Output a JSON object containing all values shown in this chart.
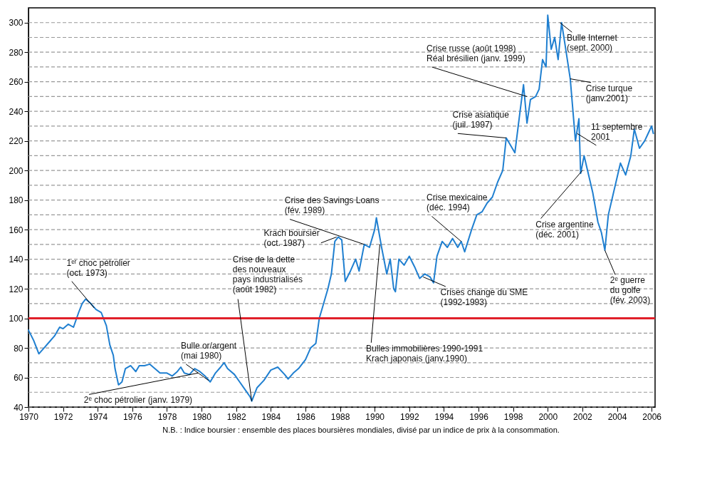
{
  "chart_data": {
    "type": "line",
    "x": [
      1970.0,
      1970.3,
      1970.6,
      1970.9,
      1971.2,
      1971.5,
      1971.8,
      1972.0,
      1972.3,
      1972.6,
      1972.9,
      1973.1,
      1973.3,
      1973.6,
      1973.9,
      1974.2,
      1974.5,
      1974.7,
      1974.9,
      1975.0,
      1975.2,
      1975.4,
      1975.6,
      1975.9,
      1976.2,
      1976.4,
      1976.7,
      1977.0,
      1977.3,
      1977.6,
      1978.0,
      1978.3,
      1978.6,
      1978.8,
      1979.0,
      1979.3,
      1979.6,
      1979.9,
      1980.2,
      1980.5,
      1980.8,
      1981.1,
      1981.3,
      1981.5,
      1981.9,
      1982.2,
      1982.5,
      1982.8,
      1982.9,
      1983.2,
      1983.6,
      1984.0,
      1984.4,
      1984.8,
      1985.0,
      1985.3,
      1985.6,
      1986.0,
      1986.3,
      1986.6,
      1986.8,
      1987.0,
      1987.3,
      1987.5,
      1987.7,
      1987.9,
      1988.1,
      1988.3,
      1988.6,
      1988.9,
      1989.1,
      1989.4,
      1989.7,
      1990.0,
      1990.1,
      1990.4,
      1990.7,
      1990.9,
      1991.1,
      1991.2,
      1991.4,
      1991.7,
      1992.0,
      1992.3,
      1992.6,
      1992.9,
      1993.2,
      1993.4,
      1993.6,
      1993.9,
      1994.2,
      1994.5,
      1994.8,
      1995.0,
      1995.2,
      1995.6,
      1995.9,
      1996.2,
      1996.5,
      1996.8,
      1997.1,
      1997.4,
      1997.6,
      1997.8,
      1998.1,
      1998.4,
      1998.6,
      1998.8,
      1999.0,
      1999.3,
      1999.5,
      1999.7,
      1999.9,
      2000.0,
      2000.2,
      2000.4,
      2000.6,
      2000.8,
      2001.0,
      2001.3,
      2001.6,
      2001.8,
      2001.9,
      2002.1,
      2002.3,
      2002.6,
      2002.9,
      2003.1,
      2003.3,
      2003.5,
      2003.8,
      2004.0,
      2004.2,
      2004.5,
      2004.8,
      2005.0,
      2005.3,
      2005.6,
      2005.8,
      2006.0,
      2006.1
    ],
    "series": [
      {
        "color": "#1f7fd0",
        "values": [
          92,
          85,
          76,
          80,
          84,
          88,
          94,
          93,
          96,
          94,
          104,
          110,
          113,
          110,
          106,
          104,
          95,
          82,
          75,
          66,
          55,
          57,
          66,
          68,
          64,
          68,
          68,
          69,
          66,
          63,
          63,
          61,
          64,
          67,
          63,
          62,
          66,
          64,
          61,
          57,
          63,
          67,
          70,
          66,
          62,
          57,
          52,
          47,
          44,
          53,
          58,
          65,
          67,
          62,
          59,
          63,
          66,
          72,
          80,
          83,
          100,
          108,
          120,
          130,
          152,
          155,
          153,
          125,
          132,
          140,
          132,
          150,
          148,
          160,
          168,
          148,
          130,
          140,
          120,
          118,
          140,
          136,
          142,
          135,
          127,
          130,
          128,
          124,
          142,
          152,
          148,
          154,
          148,
          152,
          145,
          160,
          170,
          172,
          178,
          182,
          192,
          200,
          222,
          218,
          212,
          240,
          258,
          232,
          248,
          250,
          255,
          275,
          270,
          305,
          282,
          290,
          275,
          300,
          285,
          262,
          220,
          235,
          198,
          210,
          200,
          185,
          165,
          158,
          146,
          170,
          185,
          195,
          205,
          197,
          210,
          228,
          215,
          220,
          225,
          230,
          225
        ]
      }
    ],
    "xlim": [
      1970,
      2006.2
    ],
    "xticks": [
      1970,
      1972,
      1974,
      1976,
      1978,
      1980,
      1982,
      1984,
      1986,
      1988,
      1990,
      1992,
      1994,
      1996,
      1998,
      2000,
      2002,
      2004,
      2006
    ],
    "ylim": [
      40,
      310
    ],
    "yticks": [
      40,
      {
        "value": 50,
        "label": null
      },
      60,
      {
        "value": 70,
        "label": null
      },
      80,
      {
        "value": 90,
        "label": null
      },
      100,
      {
        "value": 110,
        "label": null
      },
      120,
      {
        "value": 130,
        "label": null
      },
      140,
      {
        "value": 150,
        "label": null
      },
      160,
      {
        "value": 170,
        "label": null
      },
      180,
      {
        "value": 190,
        "label": null
      },
      200,
      {
        "value": 210,
        "label": null
      },
      220,
      {
        "value": 230,
        "label": null
      },
      240,
      {
        "value": 250,
        "label": null
      },
      260,
      {
        "value": 270,
        "label": null
      },
      280,
      {
        "value": 290,
        "label": null
      },
      300
    ],
    "grid": "y",
    "line_style": "solid",
    "ref_lines": [
      {
        "axis": "y",
        "value": 100,
        "color": "#e0202a"
      }
    ],
    "annotations": [
      {
        "text": "1ᵉʳ choc pétrolier\n(oct. 1973)",
        "x": 1973.8,
        "y": 107
      },
      {
        "text": "2ᵉ choc pétrolier (janv. 1979)",
        "x": 1979.8,
        "y": 63
      },
      {
        "text": "Bulle or/argent\n(mai 1980)",
        "x": 1980.4,
        "y": 58
      },
      {
        "text": "Crise de la dette\ndes nouveaux\npays industrialisés\n(août 1982)",
        "x": 1982.9,
        "y": 44
      },
      {
        "text": "Krach boursier\n(oct. 1987)",
        "x": 1987.8,
        "y": 155
      },
      {
        "text": "Crise des Savings Loans\n(fév. 1989)",
        "x": 1989.4,
        "y": 150
      },
      {
        "text": "Bulles immobilières 1990-1991\nKrach japonais (janv.1990)",
        "x": 1990.3,
        "y": 150
      },
      {
        "text": "Crises change du SME\n(1992-1993)",
        "x": 1992.8,
        "y": 128
      },
      {
        "text": "Crise mexicaine\n(déc. 1994)",
        "x": 1995.0,
        "y": 152
      },
      {
        "text": "Crise asiatique\n(juil. 1997)",
        "x": 1997.6,
        "y": 222
      },
      {
        "text": "Crise russe (août 1998)\nRéal brésilien (janv. 1999)",
        "x": 1998.8,
        "y": 250
      },
      {
        "text": "Bulle Internet\n(sept. 2000)",
        "x": 2000.7,
        "y": 300
      },
      {
        "text": "Crise turque\n(janv.2001)",
        "x": 2001.3,
        "y": 262
      },
      {
        "text": "11 septembre\n2001",
        "x": 2001.7,
        "y": 225
      },
      {
        "text": "Crise argentine\n(déc. 2001)",
        "x": 2002.0,
        "y": 200
      },
      {
        "text": "2ᵉ guerre\ndu golfe\n(fév. 2003)",
        "x": 2003.3,
        "y": 146
      },
      "N.B. : Indice boursier : ensemble des places boursières mondiales, divisé par un indice de prix à la consommation."
    ]
  }
}
